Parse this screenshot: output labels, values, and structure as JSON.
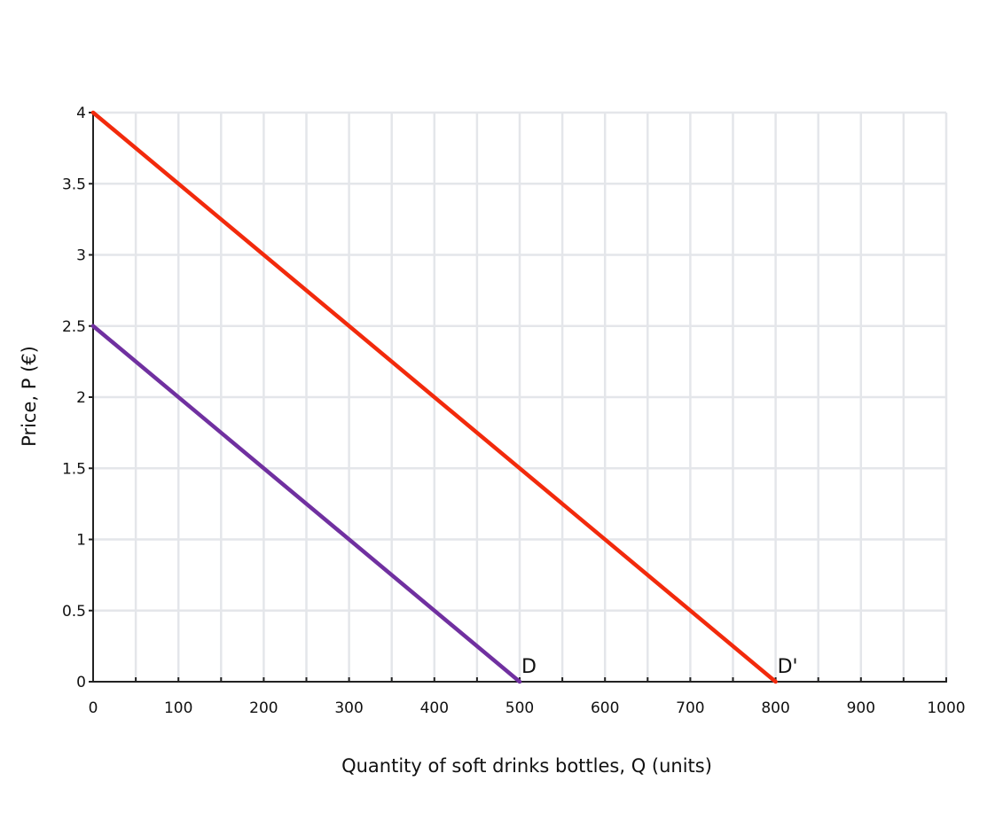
{
  "chart_data": {
    "type": "line",
    "title": "",
    "xlabel": "Quantity of soft drinks bottles, Q (units)",
    "ylabel": "Price, P (€)",
    "xlim": [
      0,
      1000
    ],
    "ylim": [
      0,
      4
    ],
    "x_ticks": [
      0,
      100,
      200,
      300,
      400,
      500,
      600,
      700,
      800,
      900,
      1000
    ],
    "x_tick_labels": [
      "0",
      "100",
      "200",
      "300",
      "400",
      "500",
      "600",
      "700",
      "800",
      "900",
      "1000"
    ],
    "y_ticks": [
      0,
      0.5,
      1,
      1.5,
      2,
      2.5,
      3,
      3.5,
      4
    ],
    "y_tick_labels": [
      "0",
      "0.5",
      "1",
      "1.5",
      "2",
      "2.5",
      "3",
      "3.5",
      "4"
    ],
    "grid": true,
    "grid_x_step": 50,
    "grid_y_step": 0.5,
    "legend": "none",
    "series": [
      {
        "name": "D",
        "color": "#7030A0",
        "x": [
          0,
          500
        ],
        "y": [
          2.5,
          0
        ]
      },
      {
        "name": "D'",
        "color": "#F22A0C",
        "x": [
          0,
          800
        ],
        "y": [
          4,
          0
        ]
      }
    ],
    "annotations": [
      {
        "text": "D",
        "x": 500,
        "y": 0
      },
      {
        "text": "D'",
        "x": 800,
        "y": 0
      }
    ]
  },
  "colors": {
    "axis": "#222222",
    "grid": "#e4e6ea",
    "text": "#111111",
    "background": "#ffffff"
  }
}
